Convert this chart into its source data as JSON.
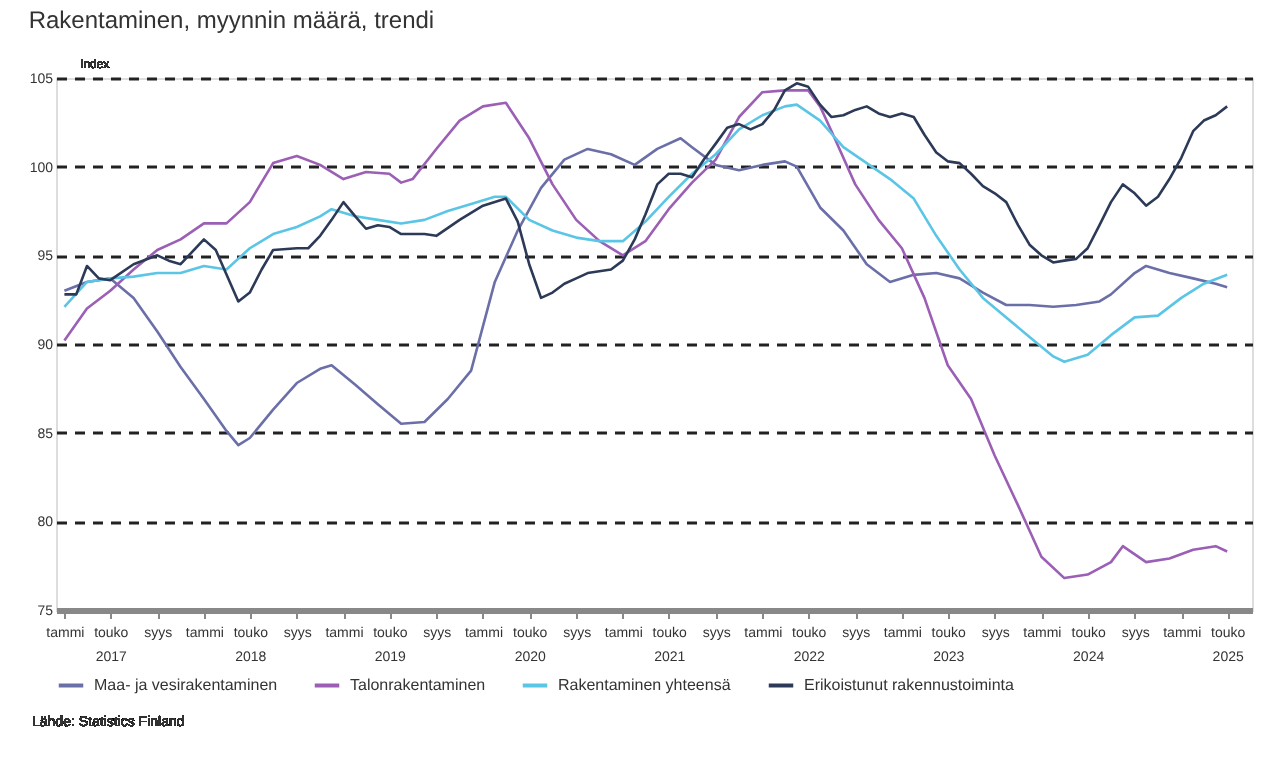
{
  "chart_data": {
    "type": "line",
    "title": "Rakentaminen, myynnin määrä, trendi",
    "ylabel": "Index",
    "ylim": [
      75,
      105
    ],
    "yticks": [
      75,
      80,
      85,
      90,
      95,
      100,
      105
    ],
    "grid": "y",
    "legend": "bottom",
    "line_style": "solid",
    "marker": "none",
    "xlim": [
      "2016-12-10",
      "2025-07-05"
    ],
    "xticks": [
      {
        "value": "2017-01",
        "label": "tammi"
      },
      {
        "value": "2017-05",
        "label": "touko\n2017"
      },
      {
        "value": "2017-09",
        "label": "syys"
      },
      {
        "value": "2018-01",
        "label": "tammi"
      },
      {
        "value": "2018-05",
        "label": "touko\n2018"
      },
      {
        "value": "2018-09",
        "label": "syys"
      },
      {
        "value": "2019-01",
        "label": "tammi"
      },
      {
        "value": "2019-05",
        "label": "touko\n2019"
      },
      {
        "value": "2019-09",
        "label": "syys"
      },
      {
        "value": "2020-01",
        "label": "tammi"
      },
      {
        "value": "2020-05",
        "label": "touko\n2020"
      },
      {
        "value": "2020-09",
        "label": "syys"
      },
      {
        "value": "2021-01",
        "label": "tammi"
      },
      {
        "value": "2021-05",
        "label": "touko\n2021"
      },
      {
        "value": "2021-09",
        "label": "syys"
      },
      {
        "value": "2022-01",
        "label": "tammi"
      },
      {
        "value": "2022-05",
        "label": "touko\n2022"
      },
      {
        "value": "2022-09",
        "label": "syys"
      },
      {
        "value": "2023-01",
        "label": "tammi"
      },
      {
        "value": "2023-05",
        "label": "touko\n2023"
      },
      {
        "value": "2023-09",
        "label": "syys"
      },
      {
        "value": "2024-01",
        "label": "tammi"
      },
      {
        "value": "2024-05",
        "label": "touko\n2024"
      },
      {
        "value": "2024-09",
        "label": "syys"
      },
      {
        "value": "2025-01",
        "label": "tammi"
      },
      {
        "value": "2025-05",
        "label": "touko\n2025"
      }
    ],
    "annotations": [
      "Lähde: Statistics Finland"
    ],
    "series": [
      {
        "name": "Maa- ja vesirakentaminen",
        "color": "#6b6fa8",
        "x": [
          "2017-01",
          "2017-03",
          "2017-05",
          "2017-07",
          "2017-09",
          "2017-11",
          "2018-01",
          "2018-03",
          "2018-04",
          "2018-05",
          "2018-07",
          "2018-09",
          "2018-11",
          "2018-12",
          "2019-02",
          "2019-04",
          "2019-06",
          "2019-08",
          "2019-10",
          "2019-12",
          "2020-02",
          "2020-04",
          "2020-06",
          "2020-08",
          "2020-10",
          "2020-12",
          "2021-02",
          "2021-04",
          "2021-06",
          "2021-07",
          "2021-09",
          "2021-11",
          "2022-01",
          "2022-03",
          "2022-04",
          "2022-06",
          "2022-08",
          "2022-10",
          "2022-12",
          "2023-02",
          "2023-04",
          "2023-06",
          "2023-08",
          "2023-10",
          "2023-12",
          "2024-02",
          "2024-04",
          "2024-06",
          "2024-07",
          "2024-09",
          "2024-10",
          "2024-12",
          "2025-02",
          "2025-04",
          "2025-05"
        ],
        "values": [
          93.0,
          93.5,
          93.7,
          92.6,
          90.7,
          88.7,
          86.9,
          85.1,
          84.3,
          84.7,
          86.3,
          87.8,
          88.6,
          88.8,
          87.7,
          86.6,
          85.5,
          85.6,
          86.9,
          88.5,
          93.5,
          96.4,
          98.8,
          100.4,
          101.0,
          100.7,
          100.1,
          101.0,
          101.6,
          101.1,
          100.1,
          99.8,
          100.1,
          100.3,
          100.0,
          97.7,
          96.4,
          94.5,
          93.5,
          93.9,
          94.0,
          93.7,
          92.9,
          92.2,
          92.2,
          92.1,
          92.2,
          92.4,
          92.8,
          94.0,
          94.4,
          94.0,
          93.7,
          93.4,
          93.2
        ]
      },
      {
        "name": "Talonrakentaminen",
        "color": "#9b5fb5",
        "x": [
          "2017-01",
          "2017-03",
          "2017-05",
          "2017-07",
          "2017-09",
          "2017-11",
          "2018-01",
          "2018-03",
          "2018-05",
          "2018-07",
          "2018-09",
          "2018-11",
          "2019-01",
          "2019-03",
          "2019-05",
          "2019-06",
          "2019-07",
          "2019-09",
          "2019-11",
          "2020-01",
          "2020-03",
          "2020-05",
          "2020-07",
          "2020-09",
          "2020-11",
          "2021-01",
          "2021-03",
          "2021-05",
          "2021-07",
          "2021-09",
          "2021-11",
          "2022-01",
          "2022-03",
          "2022-05",
          "2022-06",
          "2022-07",
          "2022-09",
          "2022-11",
          "2023-01",
          "2023-03",
          "2023-05",
          "2023-07",
          "2023-09",
          "2023-11",
          "2024-01",
          "2024-03",
          "2024-05",
          "2024-07",
          "2024-08",
          "2024-10",
          "2024-12",
          "2025-02",
          "2025-04",
          "2025-05"
        ],
        "values": [
          90.2,
          92.0,
          93.0,
          94.2,
          95.3,
          95.9,
          96.8,
          96.8,
          98.0,
          100.2,
          100.6,
          100.1,
          99.3,
          99.7,
          99.6,
          99.1,
          99.3,
          101.0,
          102.6,
          103.4,
          103.6,
          101.6,
          99.0,
          97.0,
          95.8,
          95.0,
          95.8,
          97.6,
          99.1,
          100.4,
          102.8,
          104.2,
          104.3,
          104.3,
          103.4,
          102.0,
          99.0,
          97.0,
          95.4,
          92.6,
          88.8,
          86.9,
          83.7,
          80.9,
          78.0,
          76.8,
          77.0,
          77.7,
          78.6,
          77.7,
          77.9,
          78.4,
          78.6,
          78.3
        ]
      },
      {
        "name": "Rakentaminen yhteensä",
        "color": "#5bc5e6",
        "x": [
          "2017-01",
          "2017-03",
          "2017-05",
          "2017-07",
          "2017-09",
          "2017-11",
          "2018-01",
          "2018-03",
          "2018-05",
          "2018-07",
          "2018-09",
          "2018-11",
          "2018-12",
          "2019-02",
          "2019-04",
          "2019-06",
          "2019-08",
          "2019-10",
          "2019-12",
          "2020-02",
          "2020-03",
          "2020-05",
          "2020-07",
          "2020-09",
          "2020-11",
          "2021-01",
          "2021-03",
          "2021-05",
          "2021-07",
          "2021-09",
          "2021-11",
          "2022-01",
          "2022-03",
          "2022-04",
          "2022-06",
          "2022-08",
          "2022-10",
          "2022-12",
          "2023-02",
          "2023-04",
          "2023-06",
          "2023-08",
          "2023-10",
          "2023-12",
          "2024-02",
          "2024-03",
          "2024-05",
          "2024-07",
          "2024-09",
          "2024-11",
          "2025-01",
          "2025-03",
          "2025-05"
        ],
        "values": [
          92.1,
          93.5,
          93.7,
          93.8,
          94.0,
          94.0,
          94.4,
          94.2,
          95.4,
          96.2,
          96.6,
          97.2,
          97.6,
          97.2,
          97.0,
          96.8,
          97.0,
          97.5,
          97.9,
          98.3,
          98.3,
          97.0,
          96.4,
          96.0,
          95.8,
          95.8,
          96.9,
          98.3,
          99.6,
          100.7,
          102.1,
          102.9,
          103.4,
          103.5,
          102.6,
          101.1,
          100.2,
          99.3,
          98.2,
          96.1,
          94.2,
          92.6,
          91.5,
          90.4,
          89.3,
          89.0,
          89.4,
          90.5,
          91.5,
          91.6,
          92.6,
          93.4,
          93.9
        ]
      },
      {
        "name": "Erikoistunut rakennustoiminta",
        "color": "#2c3a58",
        "x": [
          "2017-01",
          "2017-02",
          "2017-03",
          "2017-04",
          "2017-05",
          "2017-07",
          "2017-09",
          "2017-10",
          "2017-11",
          "2018-01",
          "2018-02",
          "2018-04",
          "2018-05",
          "2018-06",
          "2018-07",
          "2018-09",
          "2018-10",
          "2018-11",
          "2018-12",
          "2019-01",
          "2019-02",
          "2019-03",
          "2019-04",
          "2019-05",
          "2019-06",
          "2019-08",
          "2019-09",
          "2019-11",
          "2020-01",
          "2020-03",
          "2020-04",
          "2020-05",
          "2020-06",
          "2020-07",
          "2020-08",
          "2020-09",
          "2020-10",
          "2020-12",
          "2021-01",
          "2021-02",
          "2021-03",
          "2021-04",
          "2021-05",
          "2021-06",
          "2021-07",
          "2021-08",
          "2021-09",
          "2021-10",
          "2021-11",
          "2021-12",
          "2022-01",
          "2022-02",
          "2022-03",
          "2022-04",
          "2022-05",
          "2022-06",
          "2022-07",
          "2022-08",
          "2022-09",
          "2022-10",
          "2022-11",
          "2022-12",
          "2023-01",
          "2023-02",
          "2023-03",
          "2023-04",
          "2023-05",
          "2023-06",
          "2023-07",
          "2023-08",
          "2023-09",
          "2023-10",
          "2023-11",
          "2023-12",
          "2024-01",
          "2024-02",
          "2024-03",
          "2024-04",
          "2024-05",
          "2024-06",
          "2024-07",
          "2024-08",
          "2024-09",
          "2024-10",
          "2024-11",
          "2024-12",
          "2025-01",
          "2025-02",
          "2025-03",
          "2025-04",
          "2025-05"
        ],
        "values": [
          92.8,
          92.8,
          94.4,
          93.7,
          93.6,
          94.5,
          95.0,
          94.7,
          94.5,
          95.9,
          95.3,
          92.4,
          92.9,
          94.2,
          95.3,
          95.4,
          95.4,
          96.1,
          97.0,
          98.0,
          97.2,
          96.5,
          96.7,
          96.6,
          96.2,
          96.2,
          96.1,
          97.0,
          97.8,
          98.2,
          96.9,
          94.5,
          92.6,
          92.9,
          93.4,
          93.7,
          94.0,
          94.2,
          94.7,
          95.9,
          97.3,
          99.0,
          99.6,
          99.6,
          99.4,
          100.4,
          101.3,
          102.2,
          102.4,
          102.1,
          102.4,
          103.2,
          104.3,
          104.7,
          104.5,
          103.5,
          102.8,
          102.9,
          103.2,
          103.4,
          103.0,
          102.8,
          103.0,
          102.8,
          101.8,
          100.8,
          100.3,
          100.2,
          99.6,
          98.9,
          98.5,
          98.0,
          96.7,
          95.6,
          95.0,
          94.6,
          94.7,
          94.8,
          95.4,
          96.7,
          98.0,
          99.0,
          98.5,
          97.8,
          98.3,
          99.3,
          100.5,
          102.0,
          102.6,
          102.9,
          103.4
        ]
      }
    ]
  }
}
